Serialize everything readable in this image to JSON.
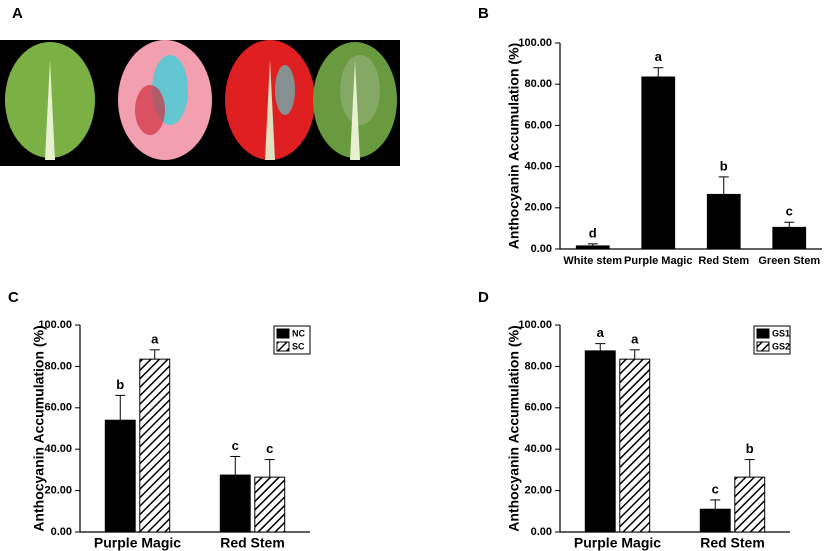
{
  "image_panel": {
    "panel": "A"
  },
  "chart_data": [
    {
      "type": "bar",
      "panel": "B",
      "ylabel": "Anthocyanin Accumulation (%)",
      "categories": [
        "White stem",
        "Purple Magic",
        "Red Stem",
        "Green Stem"
      ],
      "values": [
        1.5,
        83.5,
        26.5,
        10.5
      ],
      "errors": [
        1,
        4.5,
        8.5,
        2.5
      ],
      "significance": [
        "d",
        "a",
        "b",
        "c"
      ],
      "color": "#000000",
      "ylim": [
        0,
        100
      ],
      "yticks": [
        {
          "value": 0,
          "label": "0.00"
        },
        {
          "value": 20,
          "label": "20.00"
        },
        {
          "value": 40,
          "label": "40.00"
        },
        {
          "value": 60,
          "label": "60.00"
        },
        {
          "value": 80,
          "label": "80.00"
        },
        {
          "value": 100,
          "label": "100.00"
        }
      ]
    },
    {
      "type": "bar",
      "panel": "C",
      "ylabel": "Anthocyanin Accumulation (%)",
      "categories": [
        "Purple Magic",
        "Red Stem"
      ],
      "series": [
        {
          "name": "NC",
          "color": "#000000",
          "hatch": false,
          "values": [
            54,
            27.5
          ],
          "errors": [
            12,
            9
          ],
          "significance": [
            "b",
            "c"
          ]
        },
        {
          "name": "SC",
          "color": "#000000",
          "hatch": true,
          "values": [
            83.5,
            26.5
          ],
          "errors": [
            4.5,
            8.5
          ],
          "significance": [
            "a",
            "c"
          ]
        }
      ],
      "ylim": [
        0,
        100
      ],
      "yticks": [
        {
          "value": 0,
          "label": "0.00"
        },
        {
          "value": 20,
          "label": "20.00"
        },
        {
          "value": 40,
          "label": "40.00"
        },
        {
          "value": 60,
          "label": "60.00"
        },
        {
          "value": 80,
          "label": "80.00"
        },
        {
          "value": 100,
          "label": "100.00"
        }
      ]
    },
    {
      "type": "bar",
      "panel": "D",
      "ylabel": "Anthocyanin Accumulation (%)",
      "categories": [
        "Purple Magic",
        "Red Stem"
      ],
      "series": [
        {
          "name": "GS1",
          "color": "#000000",
          "hatch": false,
          "values": [
            87.5,
            11
          ],
          "errors": [
            3.5,
            4.5
          ],
          "significance": [
            "a",
            "c"
          ]
        },
        {
          "name": "GS2",
          "color": "#000000",
          "hatch": true,
          "values": [
            83.5,
            26.5
          ],
          "errors": [
            4.5,
            8.5
          ],
          "significance": [
            "a",
            "b"
          ]
        }
      ],
      "ylim": [
        0,
        100
      ],
      "yticks": [
        {
          "value": 0,
          "label": "0.00"
        },
        {
          "value": 20,
          "label": "20.00"
        },
        {
          "value": 40,
          "label": "40.00"
        },
        {
          "value": 60,
          "label": "60.00"
        },
        {
          "value": 80,
          "label": "80.00"
        },
        {
          "value": 100,
          "label": "100.00"
        }
      ]
    }
  ]
}
